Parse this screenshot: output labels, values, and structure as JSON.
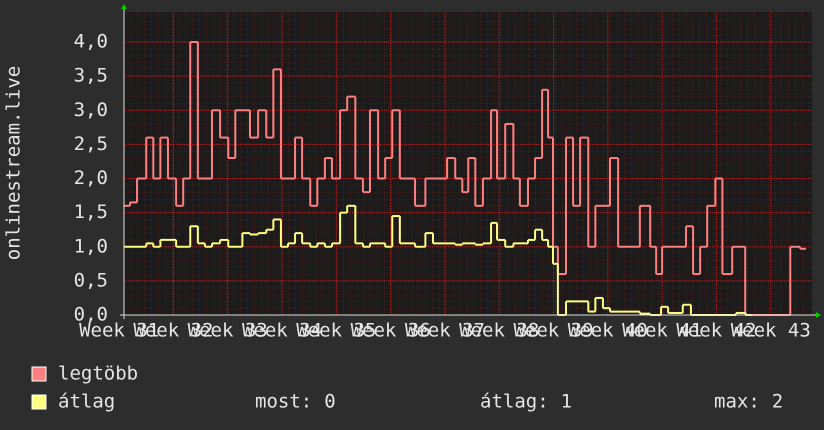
{
  "chart_data": {
    "type": "step",
    "y_label": "onlinestream.live",
    "xlim": [
      31.09,
      43.76
    ],
    "xticks": [
      {
        "value": 31,
        "label": "Week 31"
      },
      {
        "value": 32,
        "label": "Week 32"
      },
      {
        "value": 33,
        "label": "Week 33"
      },
      {
        "value": 34,
        "label": "Week 34"
      },
      {
        "value": 35,
        "label": "Week 35"
      },
      {
        "value": 36,
        "label": "Week 36"
      },
      {
        "value": 37,
        "label": "Week 37"
      },
      {
        "value": 38,
        "label": "Week 38"
      },
      {
        "value": 39,
        "label": "Week 39"
      },
      {
        "value": 40,
        "label": "Week 40"
      },
      {
        "value": 41,
        "label": "Week 41"
      },
      {
        "value": 42,
        "label": "Week 42"
      },
      {
        "value": 43,
        "label": "Week 43"
      }
    ],
    "ylim": [
      0,
      4.44
    ],
    "yticks": [
      {
        "value": 0,
        "label": "0,0"
      },
      {
        "value": 0.5,
        "label": "0,5"
      },
      {
        "value": 1,
        "label": "1,0"
      },
      {
        "value": 1.5,
        "label": "1,5"
      },
      {
        "value": 2,
        "label": "2,0"
      },
      {
        "value": 2.5,
        "label": "2,5"
      },
      {
        "value": 3,
        "label": "3,0"
      },
      {
        "value": 3.5,
        "label": "3,5"
      },
      {
        "value": 4,
        "label": "4,0"
      }
    ],
    "grid": true,
    "series": [
      {
        "name": "legtöbb",
        "color": "#ff8080",
        "x": [
          31.09,
          31.2,
          31.33,
          31.5,
          31.63,
          31.76,
          31.9,
          32.05,
          32.18,
          32.31,
          32.45,
          32.71,
          32.86,
          33.01,
          33.14,
          33.41,
          33.56,
          33.71,
          33.84,
          33.98,
          34.24,
          34.37,
          34.52,
          34.65,
          34.79,
          34.92,
          35.07,
          35.2,
          35.35,
          35.49,
          35.62,
          35.77,
          35.9,
          36.03,
          36.17,
          36.45,
          36.64,
          37.04,
          37.19,
          37.32,
          37.43,
          37.56,
          37.7,
          37.85,
          37.96,
          38.11,
          38.26,
          38.38,
          38.53,
          38.66,
          38.79,
          38.9,
          38.99,
          39.08,
          39.23,
          39.36,
          39.49,
          39.64,
          39.77,
          40.04,
          40.19,
          40.59,
          40.78,
          40.89,
          41.0,
          41.18,
          41.44,
          41.57,
          41.7,
          41.83,
          41.98,
          42.11,
          42.29,
          42.53,
          43.36,
          43.54,
          43.65
        ],
        "values": [
          1.6,
          1.65,
          2.0,
          2.6,
          2.0,
          2.6,
          2.0,
          1.6,
          2.0,
          4.0,
          2.0,
          3.0,
          2.6,
          2.3,
          3.0,
          2.6,
          3.0,
          2.6,
          3.6,
          2.0,
          2.6,
          2.0,
          1.6,
          2.0,
          2.3,
          2.0,
          3.0,
          3.2,
          2.0,
          1.8,
          3.0,
          2.0,
          2.3,
          3.0,
          2.0,
          1.6,
          2.0,
          2.3,
          2.0,
          1.8,
          2.3,
          1.6,
          2.0,
          3.0,
          2.0,
          2.8,
          2.0,
          1.6,
          2.0,
          2.3,
          3.3,
          2.6,
          1.0,
          0.6,
          2.6,
          1.6,
          2.6,
          1.0,
          1.6,
          2.3,
          1.0,
          1.6,
          1.0,
          0.6,
          1.0,
          1.0,
          1.3,
          0.6,
          1.0,
          1.6,
          2.0,
          0.6,
          1.0,
          0,
          1.0,
          0.97,
          0.97
        ]
      },
      {
        "name": "átlag",
        "color": "#ffff80",
        "x": [
          31.09,
          31.5,
          31.63,
          31.76,
          32.05,
          32.31,
          32.45,
          32.58,
          32.71,
          32.86,
          33.01,
          33.27,
          33.41,
          33.56,
          33.71,
          33.84,
          33.98,
          34.11,
          34.24,
          34.37,
          34.52,
          34.65,
          34.79,
          34.92,
          35.07,
          35.2,
          35.35,
          35.49,
          35.62,
          35.9,
          36.03,
          36.17,
          36.45,
          36.64,
          36.78,
          37.19,
          37.32,
          37.56,
          37.7,
          37.85,
          37.96,
          38.11,
          38.26,
          38.53,
          38.66,
          38.79,
          38.9,
          38.99,
          39.08,
          39.23,
          39.64,
          39.77,
          39.91,
          40.04,
          40.59,
          40.78,
          40.98,
          41.11,
          41.38,
          41.53,
          42.36,
          42.54,
          42.65
        ],
        "values": [
          1.0,
          1.05,
          1.0,
          1.1,
          1.0,
          1.3,
          1.05,
          1.0,
          1.05,
          1.1,
          1.0,
          1.2,
          1.18,
          1.2,
          1.25,
          1.4,
          1.0,
          1.05,
          1.2,
          1.05,
          1.0,
          1.05,
          1.0,
          1.05,
          1.5,
          1.6,
          1.05,
          1.0,
          1.05,
          1.0,
          1.45,
          1.05,
          1.0,
          1.2,
          1.05,
          1.03,
          1.05,
          1.03,
          1.05,
          1.35,
          1.1,
          1.0,
          1.05,
          1.1,
          1.25,
          1.1,
          1.0,
          0.75,
          0.0,
          0.2,
          0.05,
          0.25,
          0.1,
          0.05,
          0.02,
          0.0,
          0.12,
          0.03,
          0.15,
          0,
          0.03,
          0.0,
          0.0
        ]
      }
    ],
    "stats": [
      {
        "label": "most:",
        "value": 0
      },
      {
        "label": "átlag:",
        "value": 1
      },
      {
        "label": "max:",
        "value": 2
      }
    ]
  }
}
